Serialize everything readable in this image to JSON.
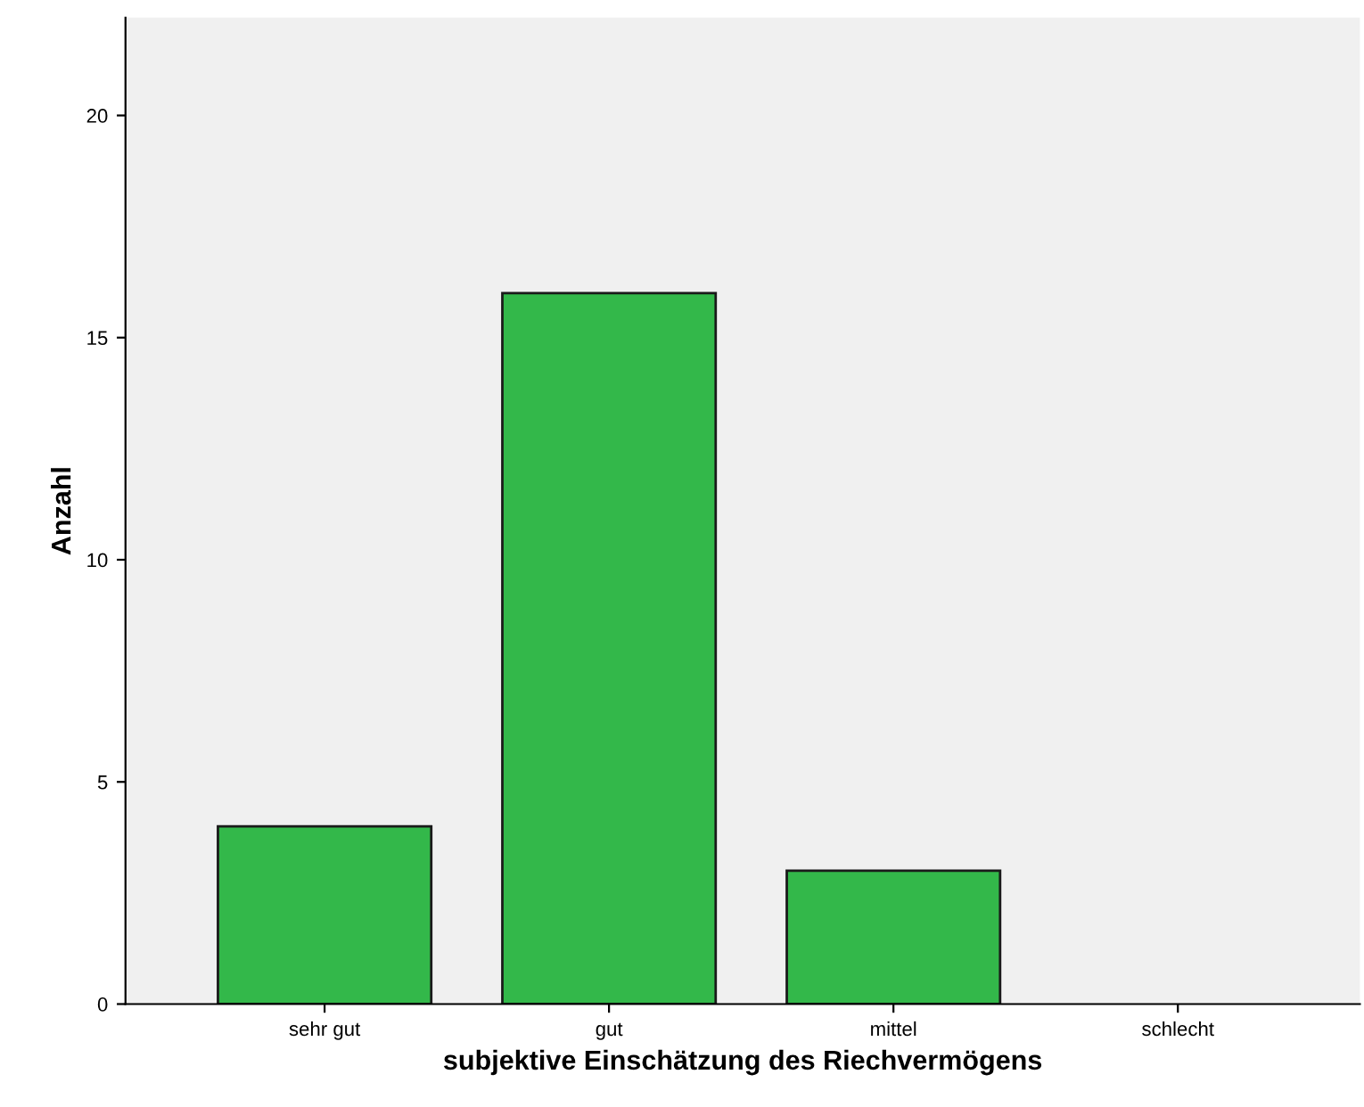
{
  "chart_data": {
    "type": "bar",
    "xlabel": "subjektive Einschätzung des Riechvermögens",
    "ylabel": "Anzahl",
    "categories": [
      "sehr gut",
      "gut",
      "mittel",
      "schlecht"
    ],
    "values": [
      4,
      16,
      3,
      0
    ],
    "color": "#33b84a",
    "ylim": [
      0,
      22.2
    ],
    "yticks": [
      0,
      5,
      10,
      15,
      20
    ],
    "grid": false,
    "legend": false
  }
}
